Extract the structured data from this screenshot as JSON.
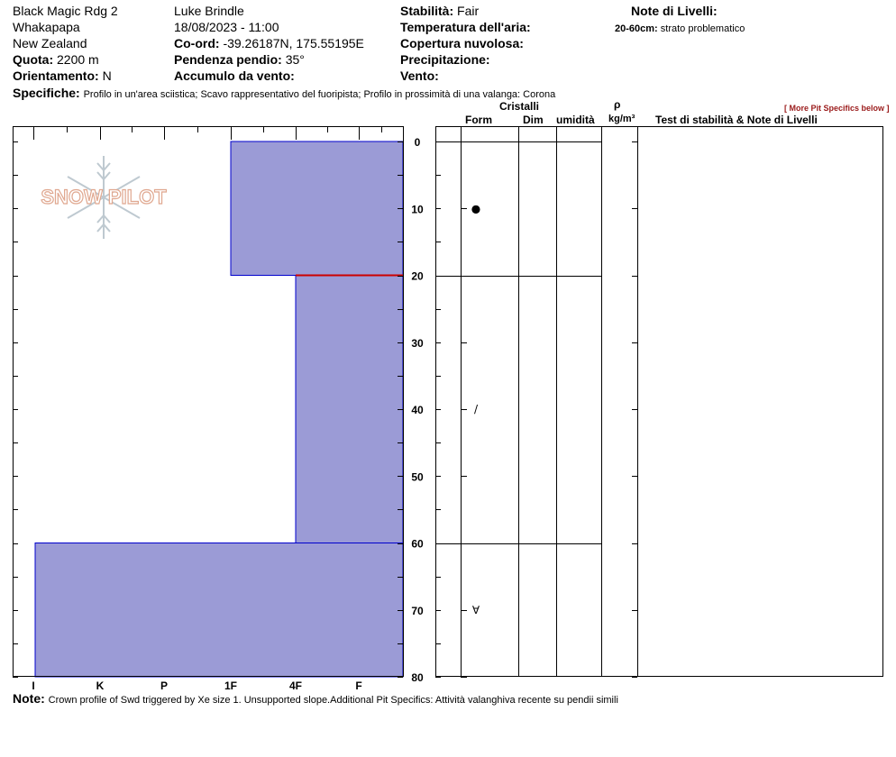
{
  "header": {
    "location": "Black Magic Rdg 2",
    "area": "Whakapapa",
    "country": "New Zealand",
    "elevation_label": "Quota:",
    "elevation_value": "2200 m",
    "aspect_label": "Orientamento:",
    "aspect_value": "N",
    "observer": "Luke Brindle",
    "datetime": "18/08/2023 - 11:00",
    "coord_label": "Co-ord:",
    "coord_value": "-39.26187N, 175.55195E",
    "slope_label": "Pendenza pendio:",
    "slope_value": "35°",
    "wind_loading_label": "Accumulo da vento:",
    "stability_label": "Stabilità:",
    "stability_value": "Fair",
    "air_temp_label": "Temperatura dell'aria:",
    "sky_cover_label": "Copertura nuvolosa:",
    "precip_label": "Precipitazione:",
    "wind_label": "Vento:",
    "layer_notes_label": "Note di Livelli:",
    "layer_note_range": "20-60cm:",
    "layer_note_text": "strato problematico",
    "specifics_label": "Specifiche:",
    "specifics_text": "Profilo in un'area sciistica; Scavo rappresentativo del fuoripista; Profilo in prossimità di una valanga: Corona",
    "more_specifics": "[ More Pit Specifics below ]"
  },
  "columns": {
    "crystals": "Cristalli",
    "form": "Form",
    "size": "Dim",
    "moisture": "umidità",
    "rho": "ρ",
    "density_unit": "kg/m³",
    "tests": "Test di stabilità & Note di Livelli"
  },
  "logo_text": "SNOW PILOT",
  "note_label": "Note:",
  "note_text": "Crown profile of Swd triggered by Xe size 1. Unsupported slope.Additional Pit Specifics: Attività valanghiva recente su pendii simili",
  "colors": {
    "hardness_fill": "#9b9bd6",
    "hardness_edge": "#0000cc",
    "weak_layer": "#cc0000",
    "logo": "#e8b8a8"
  },
  "chart_data": {
    "type": "hardness-profile",
    "y_axis": {
      "label": "",
      "range": [
        0,
        80
      ],
      "ticks": [
        0,
        10,
        20,
        30,
        40,
        50,
        60,
        70,
        80
      ],
      "direction": "down"
    },
    "x_axis": {
      "categories": [
        "I",
        "K",
        "P",
        "1F",
        "4F",
        "F"
      ]
    },
    "layers": [
      {
        "top": 0,
        "bottom": 20,
        "hardness": "1F",
        "grain_form": "rounded-grains-icon"
      },
      {
        "top": 20,
        "bottom": 60,
        "hardness": "4F",
        "grain_form": "faceted-icon"
      },
      {
        "top": 60,
        "bottom": 80,
        "hardness": "I-",
        "grain_form": "depth-hoar-icon"
      }
    ],
    "grain_symbols": [
      {
        "depth": 10,
        "symbol": "●"
      },
      {
        "depth": 40,
        "symbol": "/"
      },
      {
        "depth": 70,
        "symbol": "∀"
      }
    ],
    "weak_layer_depth": 20
  }
}
